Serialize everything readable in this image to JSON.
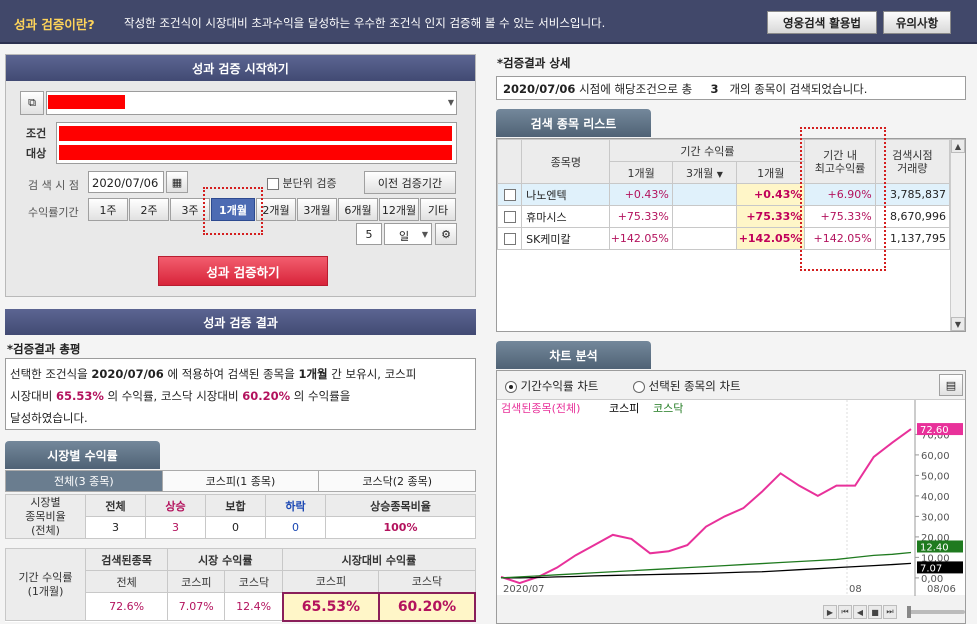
{
  "header": {
    "title": "성과 검증이란?",
    "description": "작성한 조건식이 시장대비 초과수익을 달성하는 우수한 조건식 인지 검증해 볼 수 있는 서비스입니다.",
    "btn_tutorial": "영웅검색 활용법",
    "btn_notice": "유의사항"
  },
  "start": {
    "title": "성과 검증 시작하기",
    "condition_label_1": "조건",
    "condition_label_2": "대상",
    "date_label": "검 색 시 점",
    "date_value": "2020/07/06",
    "minute_check": "분단위 검증",
    "prev_period_btn": "이전 검증기간",
    "period_label": "수익률기간",
    "periods": [
      "1주",
      "2주",
      "3주",
      "1개월",
      "2개월",
      "3개월",
      "6개월",
      "12개월",
      "기타"
    ],
    "selected_period": "1개월",
    "custom_value": "5",
    "custom_unit": "일",
    "run_btn": "성과 검증하기"
  },
  "result": {
    "title": "성과 검증 결과",
    "summary_heading": "*검증결과 총평",
    "summary_p1": "선택한 조건식을",
    "summary_date": "2020/07/06",
    "summary_p2": "에 적용하여 검색된 종목을",
    "summary_period": "1개월",
    "summary_p3": "간 보유시, 코스피",
    "summary_p4": "시장대비",
    "summary_kospi": "65.53%",
    "summary_p5": "의 수익률, 코스닥 시장대비",
    "summary_kosdaq": "60.20%",
    "summary_p6": "의 수익률을",
    "summary_p7": "달성하였습니다."
  },
  "market": {
    "tab_title": "시장별 수익률",
    "subtabs": [
      "전체(3 종목)",
      "코스피(1 종목)",
      "코스닥(2 종목)"
    ],
    "ratio_label": "시장별\n종목비율\n(전체)",
    "ratio_headers": [
      "전체",
      "상승",
      "보합",
      "하락",
      "상승종목비율"
    ],
    "ratio_values": [
      "3",
      "3",
      "0",
      "0",
      "100%"
    ],
    "period_label": "기간 수익률\n(1개월)",
    "group_headers": [
      "검색된종목",
      "시장 수익률",
      "시장대비 수익률"
    ],
    "sub_headers": [
      "전체",
      "코스피",
      "코스닥",
      "코스피",
      "코스닥"
    ],
    "values": [
      "72.6%",
      "7.07%",
      "12.4%",
      "65.53%",
      "60.20%"
    ]
  },
  "detail": {
    "heading": "*검증결과 상세",
    "info_date": "2020/07/06",
    "info_p1": "시점에 해당조건으로 총",
    "info_count": "3",
    "info_p2": "개의 종목이 검색되었습니다."
  },
  "list": {
    "tab_title": "검색 종목 리스트",
    "h_name": "종목명",
    "h_period": "기간 수익률",
    "h_1m": "1개월",
    "h_3m": "3개월",
    "h_1m_b": "1개월",
    "h_max": "기간 내\n최고수익률",
    "h_volume": "검색시점\n거래량",
    "rows": [
      {
        "name": "나노엔텍",
        "r1": "+0.43%",
        "r1b": "+0.43%",
        "max": "+6.90%",
        "vol": "3,785,837"
      },
      {
        "name": "휴마시스",
        "r1": "+75.33%",
        "r1b": "+75.33%",
        "max": "+75.33%",
        "vol": "8,670,996"
      },
      {
        "name": "SK케미칼",
        "r1": "+142.05%",
        "r1b": "+142.05%",
        "max": "+142.05%",
        "vol": "1,137,795"
      }
    ]
  },
  "chart": {
    "tab_title": "차트 분석",
    "radio_1": "기간수익률 차트",
    "radio_2": "선택된 종목의 차트",
    "legend": [
      "검색된종목(전체)",
      "코스피",
      "코스닥"
    ],
    "y_ticks": [
      "70,00",
      "60,00",
      "50,00",
      "40,00",
      "30,00",
      "20,00",
      "10,00",
      "0,00"
    ],
    "x_labels": [
      "2020/07",
      "08",
      "08/06"
    ],
    "last_values": [
      "72.60",
      "12.40",
      "7.07"
    ],
    "colors": {
      "stock": "#e8319a",
      "kosdaq": "#1f7a1f",
      "kospi": "#000000"
    }
  },
  "chart_data": {
    "type": "line",
    "x_count": 23,
    "ylim": [
      -2,
      78
    ],
    "series": [
      {
        "name": "검색된종목(전체)",
        "values": [
          0.5,
          -2.5,
          0.5,
          5,
          11,
          16,
          21,
          19,
          12,
          13,
          16,
          25,
          30,
          34,
          42,
          51,
          45,
          40,
          45,
          45,
          59,
          66,
          72.6
        ]
      },
      {
        "name": "코스피",
        "values": [
          0,
          0,
          0.2,
          0.5,
          0.7,
          1,
          1.2,
          1.4,
          1.6,
          1.8,
          2,
          2.2,
          2.5,
          2.8,
          3,
          3.5,
          4,
          4.5,
          5,
          5.5,
          6,
          6.5,
          7.07
        ]
      },
      {
        "name": "코스닥",
        "values": [
          0,
          0.5,
          1,
          1.5,
          2,
          2.5,
          3,
          3.5,
          4,
          4.5,
          5,
          5.5,
          6,
          6.5,
          7,
          7.5,
          8,
          8.5,
          9,
          10,
          11,
          11.5,
          12.4
        ]
      }
    ]
  }
}
